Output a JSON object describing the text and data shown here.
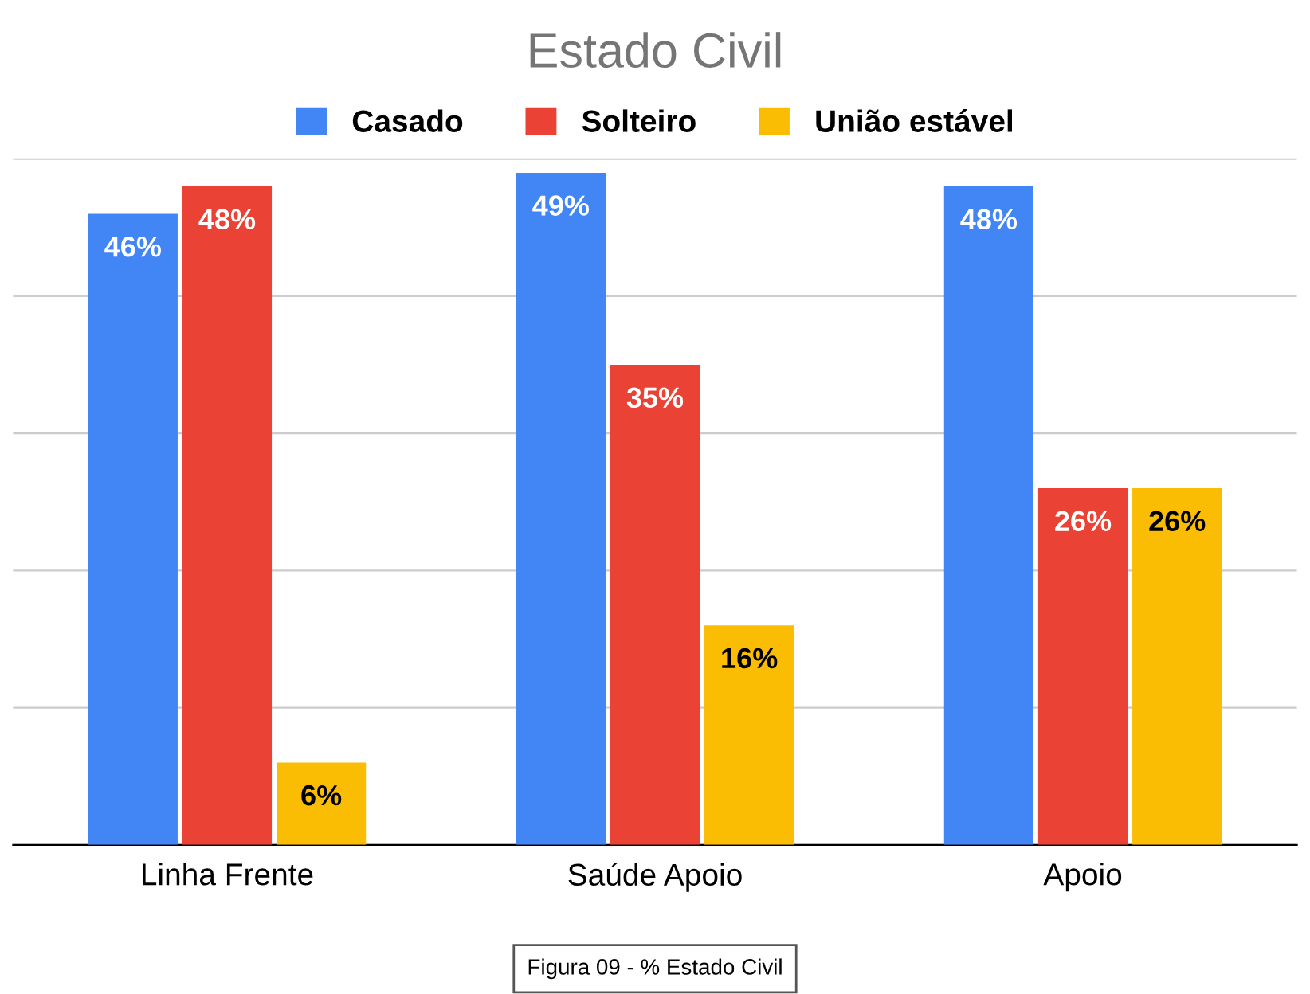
{
  "chart_data": {
    "type": "bar",
    "title": "Estado Civil",
    "categories": [
      "Linha Frente",
      "Saúde Apoio",
      "Apoio"
    ],
    "series": [
      {
        "name": "Casado",
        "color": "#4285f4",
        "values": [
          46,
          49,
          48
        ],
        "value_labels": [
          "46%",
          "49%",
          "48%"
        ]
      },
      {
        "name": "Solteiro",
        "color": "#ea4335",
        "values": [
          48,
          35,
          26
        ],
        "value_labels": [
          "48%",
          "35%",
          "26%"
        ]
      },
      {
        "name": "União estável",
        "color": "#fbbc04",
        "values": [
          6,
          16,
          26
        ],
        "value_labels": [
          "6%",
          "16%",
          "26%"
        ]
      }
    ],
    "ylim": [
      0,
      50
    ],
    "yticks": [
      {
        "value": 0,
        "label": null
      },
      {
        "value": 10,
        "label": null
      },
      {
        "value": 20,
        "label": null
      },
      {
        "value": 30,
        "label": null
      },
      {
        "value": 40,
        "label": null
      },
      {
        "value": 50,
        "label": null
      }
    ],
    "grid": "y",
    "legend": "top",
    "annotations": [
      "Figura 09 - % Estado Civil"
    ]
  }
}
